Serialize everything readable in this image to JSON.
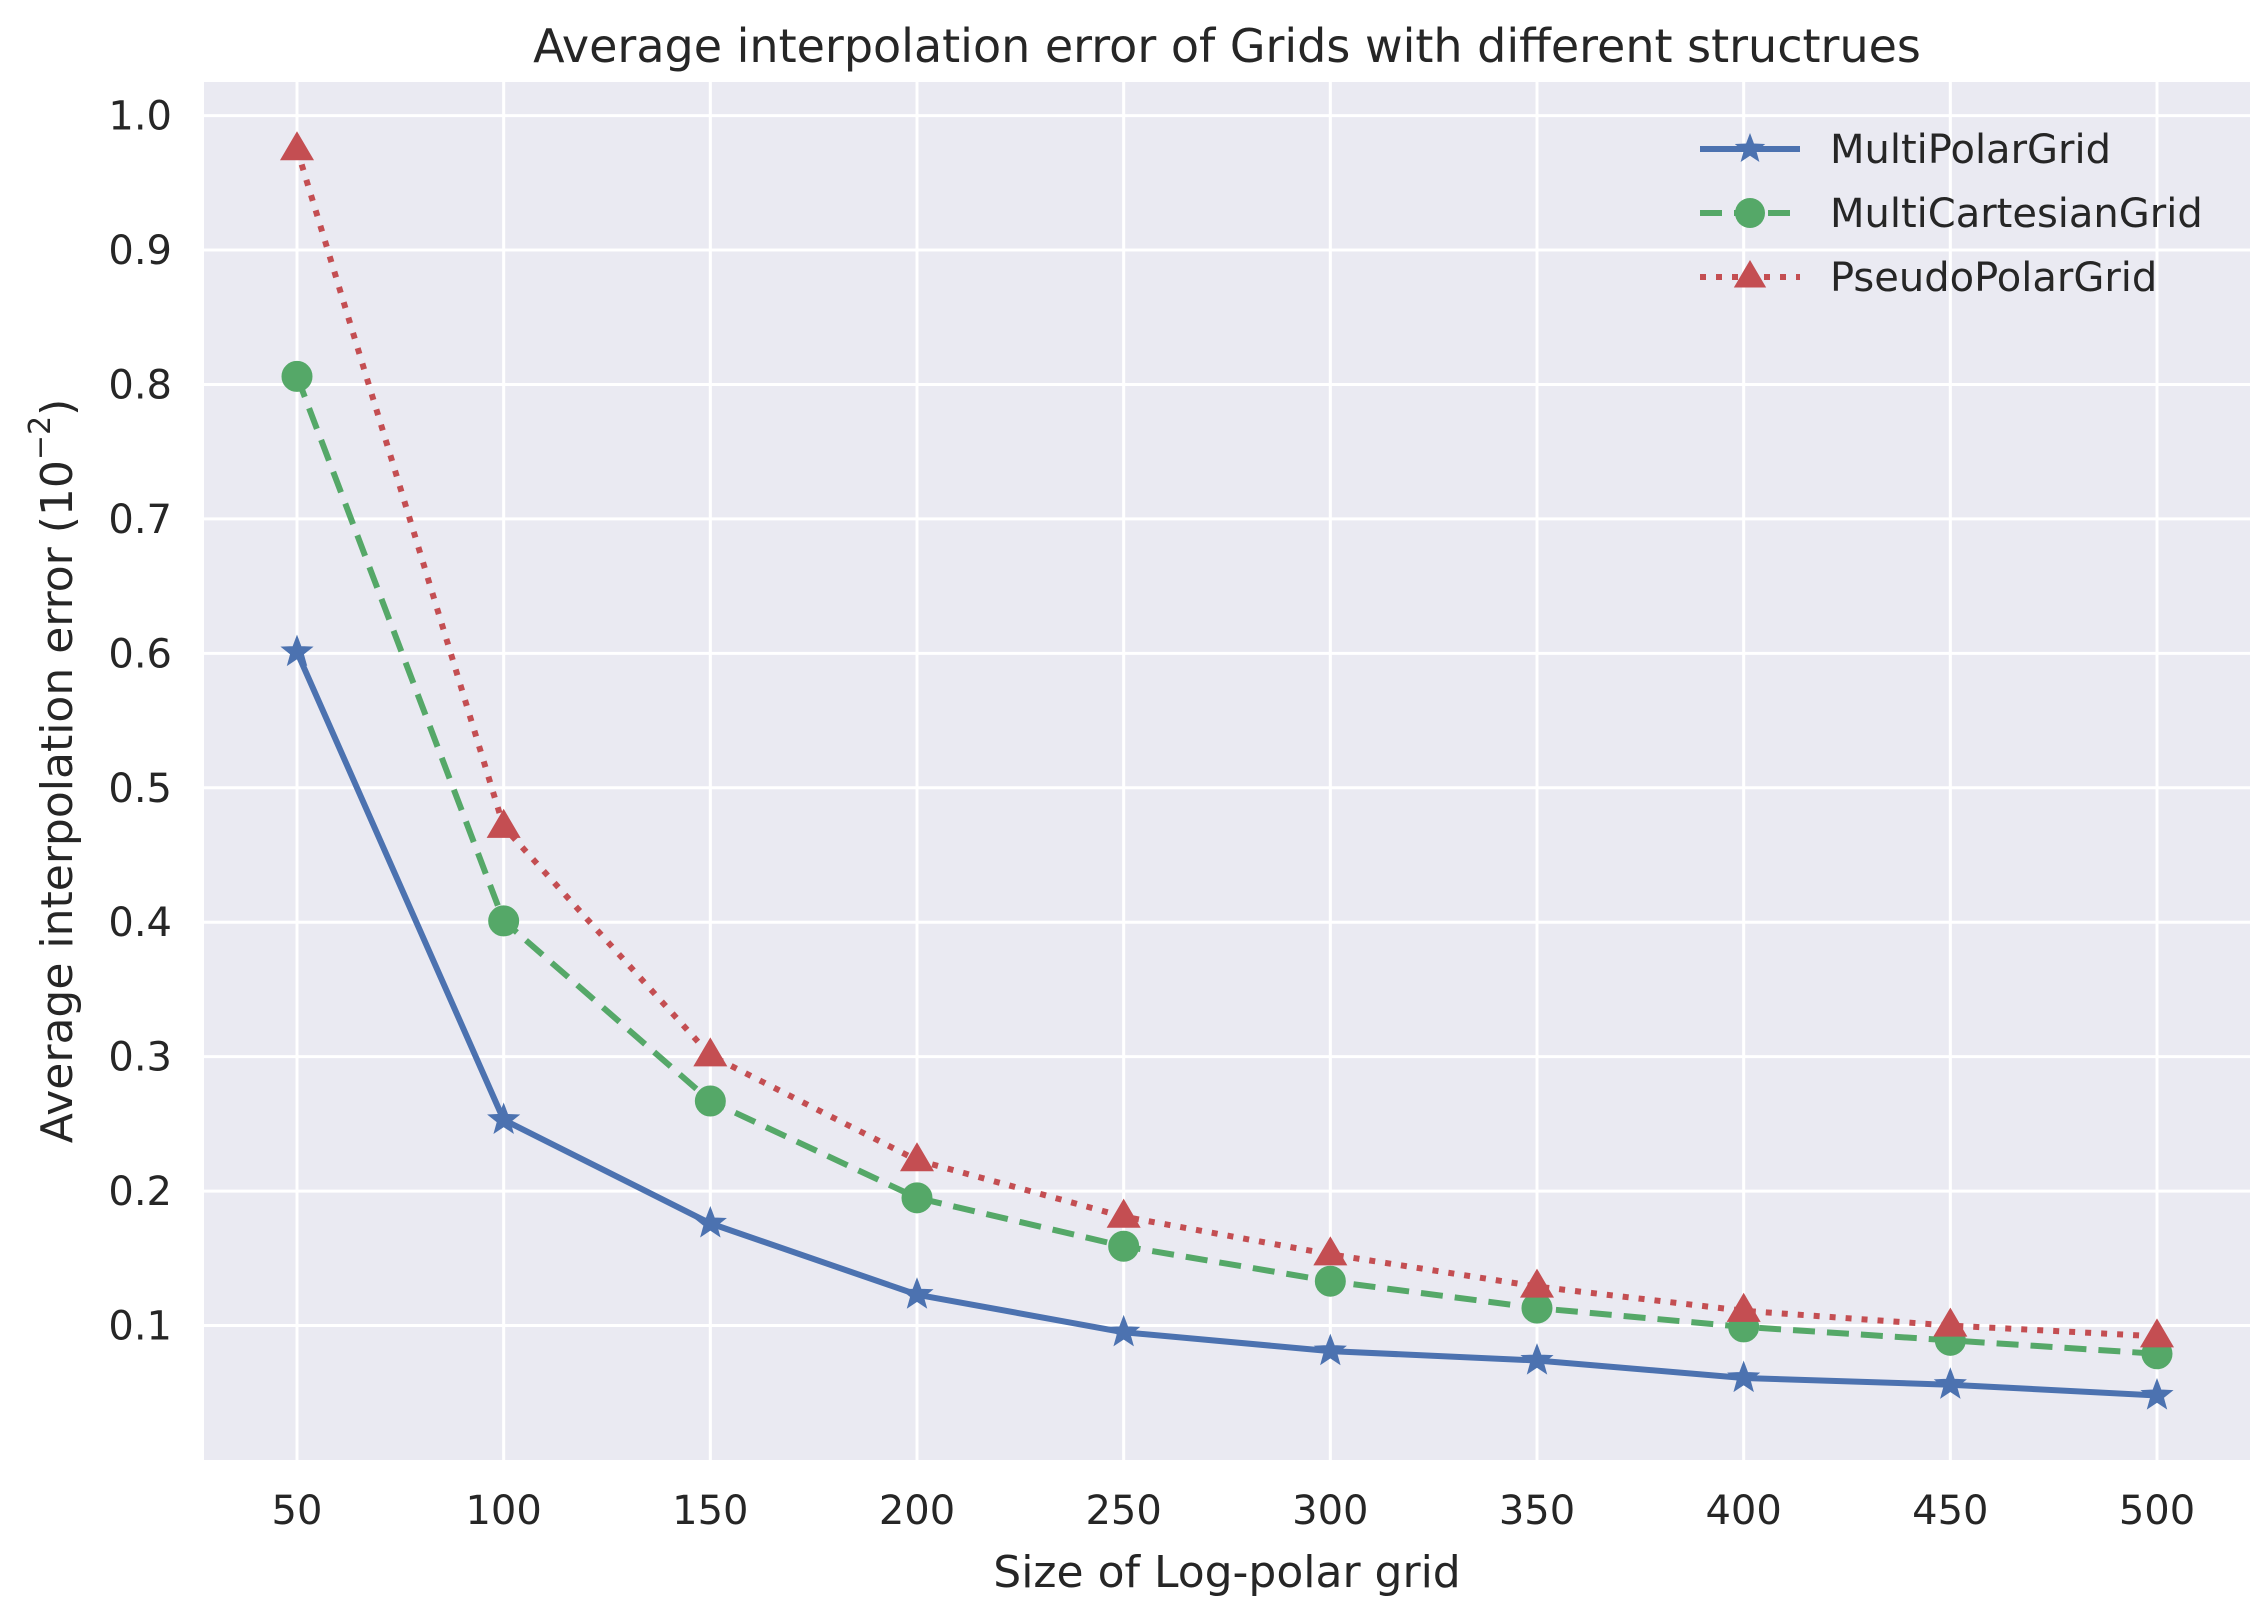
{
  "chart_data": {
    "type": "line",
    "title": "Average interpolation error of Grids with different structrues",
    "xlabel": "Size of Log-polar grid",
    "ylabel_main": "Average interpolation error (10",
    "ylabel_exponent": "−2",
    "ylabel_close": ")",
    "x": [
      50,
      100,
      150,
      200,
      250,
      300,
      350,
      400,
      450,
      500
    ],
    "x_tick_labels": [
      "50",
      "100",
      "150",
      "200",
      "250",
      "300",
      "350",
      "400",
      "450",
      "500"
    ],
    "y_ticks": [
      0.1,
      0.2,
      0.3,
      0.4,
      0.5,
      0.6,
      0.7,
      0.8,
      0.9,
      1.0
    ],
    "y_tick_labels": [
      "0.1",
      "0.2",
      "0.3",
      "0.4",
      "0.5",
      "0.6",
      "0.7",
      "0.8",
      "0.9",
      "1.0"
    ],
    "xlim": [
      27.5,
      522.5
    ],
    "ylim": [
      0.0,
      1.025
    ],
    "grid": true,
    "legend_position": "top-right",
    "series": [
      {
        "name": "MultiPolarGrid",
        "color": "#4c72b0",
        "line_style": "solid",
        "marker": "star",
        "values": [
          0.601,
          0.253,
          0.176,
          0.123,
          0.095,
          0.081,
          0.074,
          0.061,
          0.056,
          0.048
        ]
      },
      {
        "name": "MultiCartesianGrid",
        "color": "#55a868",
        "line_style": "dashed",
        "marker": "circle",
        "values": [
          0.806,
          0.401,
          0.267,
          0.195,
          0.159,
          0.133,
          0.113,
          0.099,
          0.089,
          0.079
        ]
      },
      {
        "name": "PseudoPolarGrid",
        "color": "#c44e52",
        "line_style": "dotted",
        "marker": "triangle",
        "values": [
          0.975,
          0.471,
          0.301,
          0.223,
          0.181,
          0.153,
          0.129,
          0.111,
          0.1,
          0.092
        ]
      }
    ],
    "background_color": "#eaeaf2",
    "grid_color": "#ffffff"
  }
}
